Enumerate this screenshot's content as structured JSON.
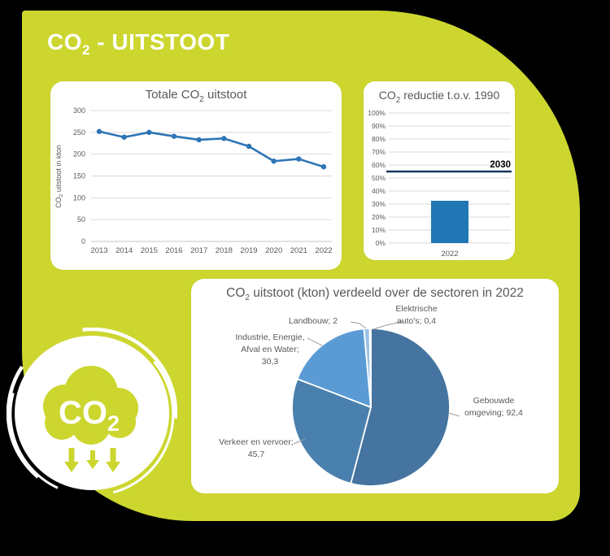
{
  "page": {
    "title_parts": {
      "pre": "CO",
      "sub": "2",
      "post": " - UITSTOOT"
    },
    "colors": {
      "background": "#000000",
      "accent_lime": "#ccd62e",
      "card_bg": "#ffffff",
      "text_gray": "#595959",
      "grid_gray": "#d9d9d9",
      "leader_gray": "#9b9b9b",
      "line_blue": "#2e75b6",
      "bar_blue": "#2077b4",
      "target_navy": "#17375e"
    }
  },
  "badge": {
    "icon": "co2-cloud-with-down-arrows-icon",
    "text_parts": {
      "pre": "CO",
      "sub": "2"
    }
  },
  "chart_data": [
    {
      "id": "line",
      "type": "line",
      "title": "Totale CO2 uitstoot",
      "title_parts": {
        "pre": "Totale CO",
        "sub": "2",
        "post": " uitstoot"
      },
      "ylabel": "CO2 uitstoot in kton",
      "ylabel_parts": {
        "pre": "CO",
        "sub": "2",
        "post": " uitstoot in kton"
      },
      "categories": [
        "2013",
        "2014",
        "2015",
        "2016",
        "2017",
        "2018",
        "2019",
        "2020",
        "2021",
        "2022"
      ],
      "values": [
        252,
        239,
        250,
        241,
        233,
        236,
        218,
        184,
        189,
        171
      ],
      "ylim": [
        0,
        300
      ],
      "ytick_step": 50,
      "grid": true,
      "legend": "none"
    },
    {
      "id": "bar",
      "type": "bar",
      "title": "CO2 reductie t.o.v. 1990",
      "title_parts": {
        "pre": "CO",
        "sub": "2",
        "post": " reductie t.o.v. 1990"
      },
      "categories": [
        "2022"
      ],
      "values": [
        32.5
      ],
      "ylim": [
        0,
        100
      ],
      "ytick_step": 10,
      "ytick_suffix": "%",
      "grid": true,
      "target_line": {
        "value": 55,
        "label": "2030"
      },
      "legend": "none"
    },
    {
      "id": "pie",
      "type": "pie",
      "title": "CO2 uitstoot (kton) verdeeld over de sectoren in 2022",
      "title_parts": {
        "pre": "CO",
        "sub": "2",
        "post": " uitstoot (kton) verdeeld over de sectoren in 2022"
      },
      "slices": [
        {
          "name": "Gebouwde omgeving",
          "value": 92.4,
          "label_lines": [
            "Gebouwde",
            "omgeving; 92,4"
          ],
          "color": "#44749f"
        },
        {
          "name": "Verkeer en vervoer",
          "value": 45.7,
          "label_lines": [
            "Verkeer en vervoer;",
            "45,7"
          ],
          "color": "#4a80ae"
        },
        {
          "name": "Industrie, Energie, Afval en Water",
          "value": 30.3,
          "label_lines": [
            "Industrie, Energie,",
            "Afval en Water;",
            "30,3"
          ],
          "color": "#5b9bd5"
        },
        {
          "name": "Landbouw",
          "value": 2,
          "label_lines": [
            "Landbouw; 2"
          ],
          "color": "#9cc2e5"
        },
        {
          "name": "Elektrische auto's",
          "value": 0.4,
          "label_lines": [
            "Elektrische",
            "auto's; 0,4"
          ],
          "color": "#d9d9d9"
        }
      ],
      "legend": "none"
    }
  ]
}
